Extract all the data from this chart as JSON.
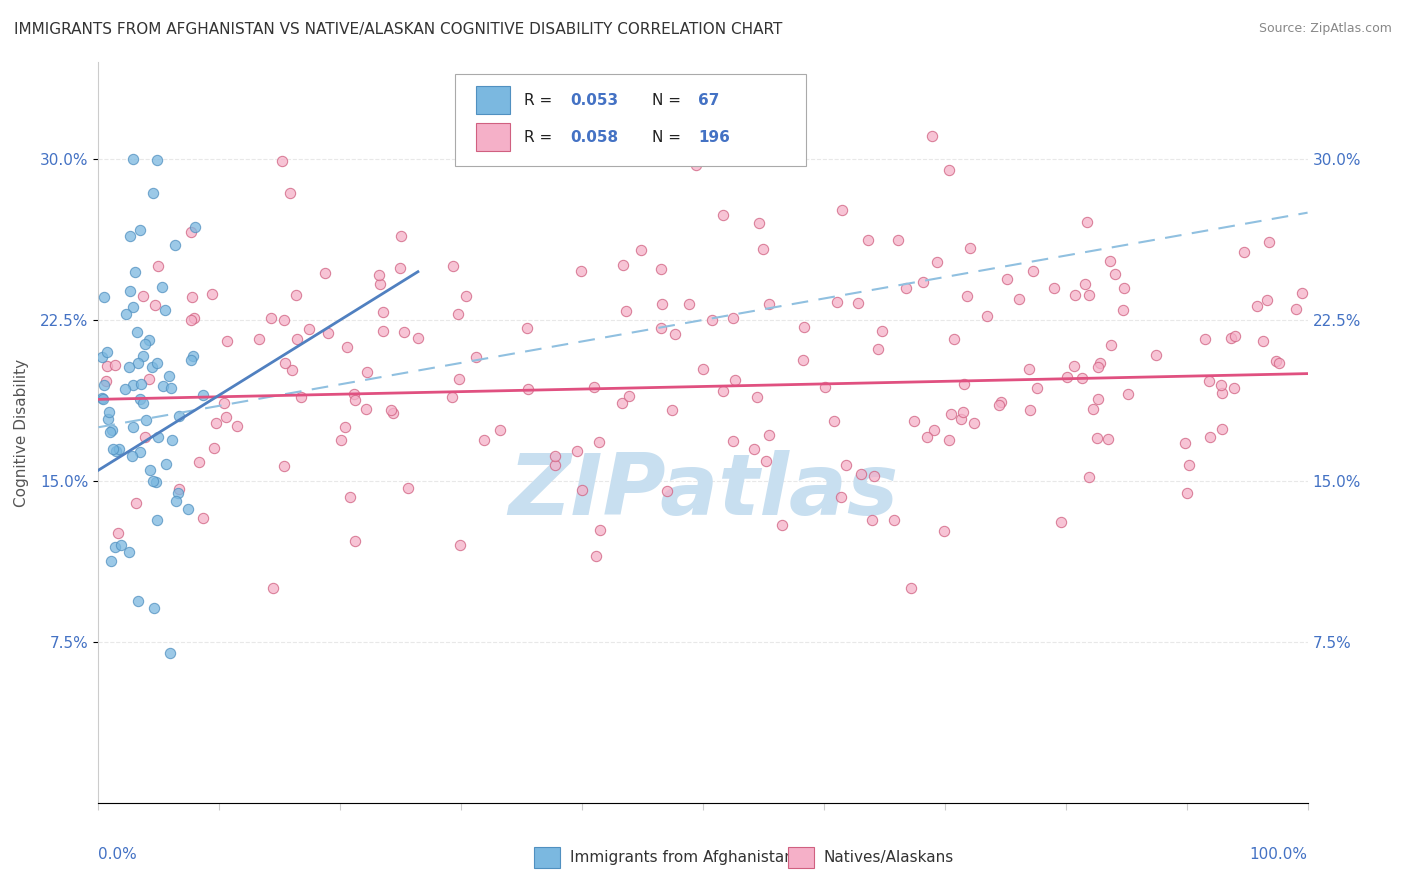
{
  "title": "IMMIGRANTS FROM AFGHANISTAN VS NATIVE/ALASKAN COGNITIVE DISABILITY CORRELATION CHART",
  "source": "Source: ZipAtlas.com",
  "ylabel": "Cognitive Disability",
  "yticks": [
    0.075,
    0.15,
    0.225,
    0.3
  ],
  "ytick_labels": [
    "7.5%",
    "15.0%",
    "22.5%",
    "30.0%"
  ],
  "xlim": [
    0.0,
    1.0
  ],
  "ylim": [
    0.0,
    0.345
  ],
  "blue_color": "#7bb8e0",
  "blue_edge_color": "#5090c0",
  "pink_color": "#f5b0c8",
  "pink_edge_color": "#d06080",
  "trend_blue_color": "#5080c0",
  "trend_pink_color": "#e05080",
  "trend_dashed_blue_color": "#90c0e0",
  "watermark": "ZIPatlas",
  "watermark_color": "#c8dff0",
  "grid_color": "#e8e8e8",
  "spine_color": "#cccccc",
  "tick_color": "#4472c4",
  "title_color": "#333333",
  "source_color": "#888888",
  "ylabel_color": "#555555",
  "legend_r1": "0.053",
  "legend_n1": "67",
  "legend_r2": "0.058",
  "legend_n2": "196",
  "blue_seed": 42,
  "pink_seed": 99
}
